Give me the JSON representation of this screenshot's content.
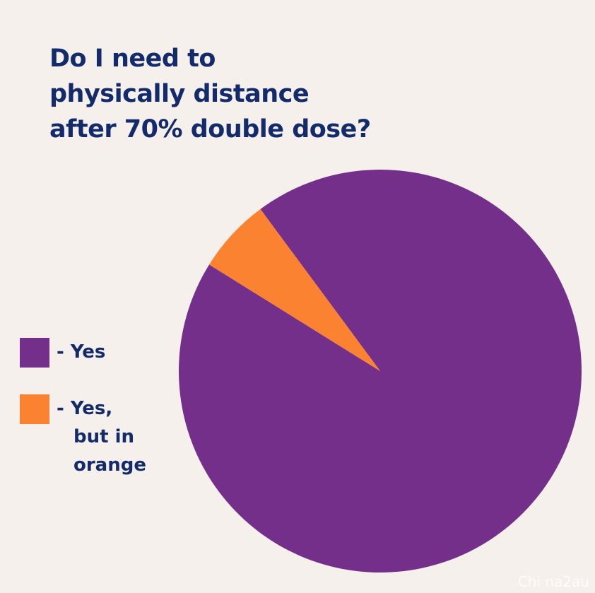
{
  "chart_data": {
    "type": "pie",
    "title": "Do I need to\nphysically distance\nafter 70% double dose?",
    "categories": [
      "- Yes",
      "- Yes,\nbut in\norange"
    ],
    "values": [
      94,
      6
    ],
    "colors": [
      "#742f8a",
      "#fb8230"
    ]
  },
  "watermark": "Chi na2au"
}
